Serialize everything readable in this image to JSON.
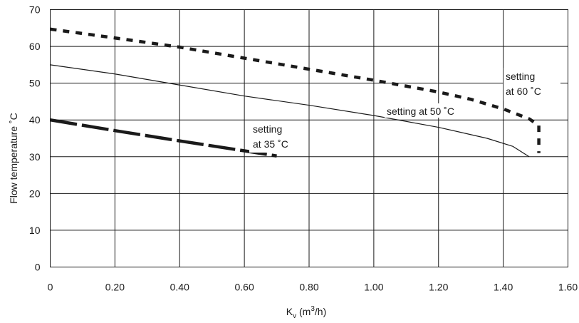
{
  "chart_data": {
    "type": "line",
    "xlabel": "K",
    "xlabel_sub": "v",
    "xlabel_unit_prefix": " (m",
    "xlabel_unit_sup": "3",
    "xlabel_unit_suffix": "/h)",
    "ylabel": "Flow temperature ˚C",
    "xlim": [
      0,
      1.6
    ],
    "ylim": [
      0,
      70
    ],
    "x_ticks": [
      "0",
      "0.20",
      "0.40",
      "0.60",
      "0.80",
      "1.00",
      "1.20",
      "1.40",
      "1.60"
    ],
    "y_ticks": [
      "0",
      "10",
      "20",
      "30",
      "40",
      "50",
      "60",
      "70"
    ],
    "grid": true,
    "series": [
      {
        "style": "dotted-thick",
        "points": [
          [
            0,
            64.7
          ],
          [
            0.2,
            62.3
          ],
          [
            0.4,
            59.8
          ],
          [
            0.6,
            56.8
          ],
          [
            0.8,
            53.8
          ],
          [
            1.0,
            50.8
          ],
          [
            1.2,
            47.6
          ],
          [
            1.3,
            45.6
          ],
          [
            1.4,
            43.0
          ],
          [
            1.48,
            40.3
          ],
          [
            1.51,
            38.5
          ],
          [
            1.51,
            31.0
          ]
        ]
      },
      {
        "style": "thin-solid",
        "points": [
          [
            0,
            55
          ],
          [
            0.2,
            52.5
          ],
          [
            0.4,
            49.5
          ],
          [
            0.6,
            46.5
          ],
          [
            0.8,
            44
          ],
          [
            1.0,
            41.2
          ],
          [
            1.2,
            38
          ],
          [
            1.35,
            35
          ],
          [
            1.43,
            32.8
          ],
          [
            1.48,
            30
          ]
        ]
      },
      {
        "style": "dashed-thick",
        "points": [
          [
            0,
            40
          ],
          [
            0.2,
            37.1
          ],
          [
            0.4,
            34.3
          ],
          [
            0.6,
            31.6
          ],
          [
            0.7,
            30.2
          ]
        ]
      }
    ],
    "annotations": [
      {
        "id": "ann-60",
        "lines": [
          "setting",
          "at 60 ˚C"
        ]
      },
      {
        "id": "ann-50",
        "lines": [
          "setting at 50 ˚C"
        ]
      },
      {
        "id": "ann-35",
        "lines": [
          "setting",
          "at 35 ˚C"
        ]
      }
    ]
  }
}
